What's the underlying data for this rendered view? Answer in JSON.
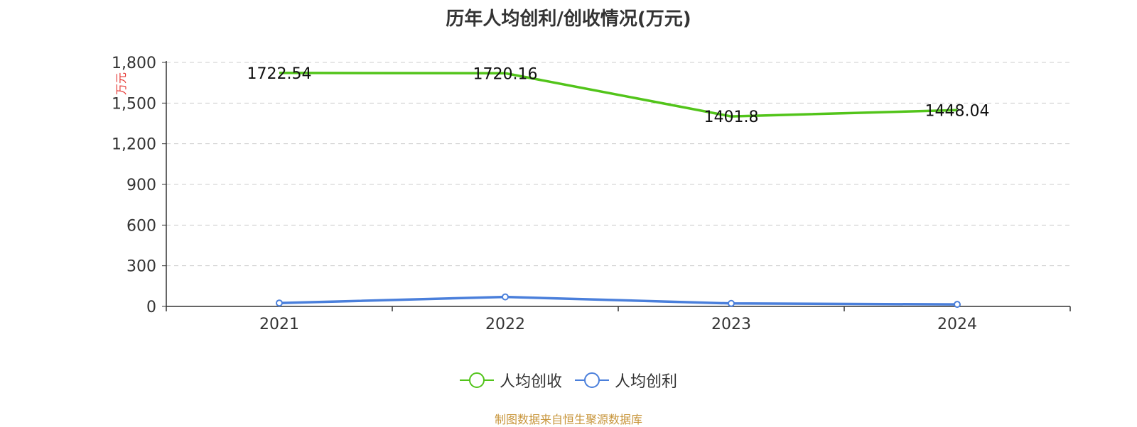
{
  "title": "历年人均创利/创收情况(万元)",
  "source_note": "制图数据来自恒生聚源数据库",
  "colors": {
    "revenue": "#52c41a",
    "profit": "#4a7fdb",
    "ylabel": "#e53935"
  },
  "chart_data": {
    "type": "line",
    "title": "历年人均创利/创收情况(万元)",
    "xlabel": "",
    "ylabel": "万元",
    "categories": [
      "2021",
      "2022",
      "2023",
      "2024"
    ],
    "yticks": [
      "0",
      "300",
      "600",
      "900",
      "1,200",
      "1,500",
      "1,800"
    ],
    "ylim": [
      0,
      1800
    ],
    "grid": true,
    "legend_position": "bottom",
    "series": [
      {
        "name": "人均创收",
        "values": [
          1722.54,
          1720.16,
          1401.8,
          1448.04
        ],
        "labels": [
          "1722.54",
          "1720.16",
          "1401.8",
          "1448.04"
        ]
      },
      {
        "name": "人均创利",
        "values": [
          25,
          70,
          22,
          15
        ]
      }
    ]
  }
}
